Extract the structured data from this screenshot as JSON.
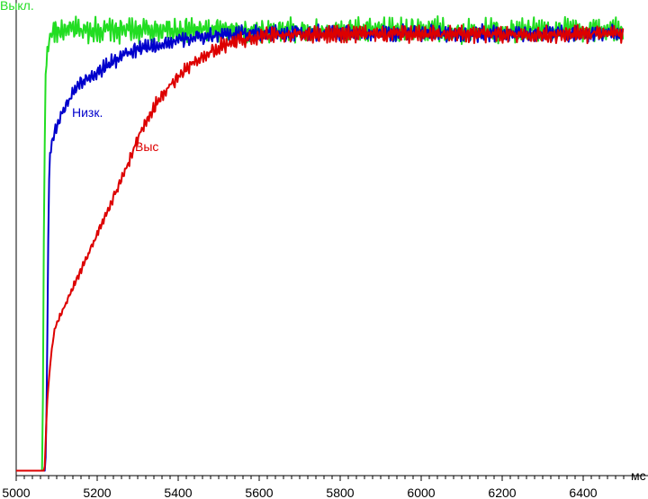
{
  "chart_data": {
    "type": "line",
    "title": "",
    "xlabel": "мс",
    "ylabel": "",
    "xlim": [
      5000,
      6500
    ],
    "ylim": [
      0,
      100
    ],
    "grid": false,
    "x_ticks": [
      "5000",
      "5200",
      "5400",
      "5600",
      "5800",
      "6000",
      "6200",
      "6400"
    ],
    "series": [
      {
        "name": "Выкл.",
        "color": "#22dd22",
        "baseline": 0.3,
        "onset_ms": 5068,
        "final_level": 98.3,
        "noise": 3.0,
        "points": [
          [
            5000,
            0.3
          ],
          [
            5065,
            0.3
          ],
          [
            5068,
            50
          ],
          [
            5072,
            88
          ],
          [
            5078,
            95
          ],
          [
            5090,
            98
          ],
          [
            5120,
            98.3
          ],
          [
            6500,
            98.3
          ]
        ]
      },
      {
        "name": "Низк.",
        "color": "#0000cc",
        "baseline": 0.3,
        "onset_ms": 5074,
        "final_level": 97.6,
        "noise": 2.0,
        "points": [
          [
            5000,
            0.3
          ],
          [
            5072,
            0.3
          ],
          [
            5076,
            20
          ],
          [
            5080,
            60
          ],
          [
            5083,
            71
          ],
          [
            5090,
            74
          ],
          [
            5100,
            77
          ],
          [
            5120,
            81
          ],
          [
            5150,
            86
          ],
          [
            5200,
            89
          ],
          [
            5250,
            92
          ],
          [
            5300,
            94
          ],
          [
            5400,
            96
          ],
          [
            5500,
            97.3
          ],
          [
            5600,
            97.6
          ],
          [
            6500,
            97.6
          ]
        ]
      },
      {
        "name": "Выс",
        "color": "#dd0000",
        "baseline": 0.3,
        "onset_ms": 5070,
        "final_level": 97.4,
        "noise": 2.0,
        "points": [
          [
            5000,
            0.3
          ],
          [
            5070,
            0.3
          ],
          [
            5076,
            15
          ],
          [
            5085,
            25
          ],
          [
            5095,
            32
          ],
          [
            5110,
            35
          ],
          [
            5140,
            41
          ],
          [
            5170,
            47
          ],
          [
            5200,
            53
          ],
          [
            5230,
            59
          ],
          [
            5260,
            65
          ],
          [
            5290,
            72
          ],
          [
            5320,
            78
          ],
          [
            5360,
            84
          ],
          [
            5400,
            88
          ],
          [
            5450,
            92
          ],
          [
            5500,
            94.5
          ],
          [
            5550,
            96
          ],
          [
            5600,
            97
          ],
          [
            5700,
            97.4
          ],
          [
            6500,
            97.4
          ]
        ]
      }
    ]
  }
}
